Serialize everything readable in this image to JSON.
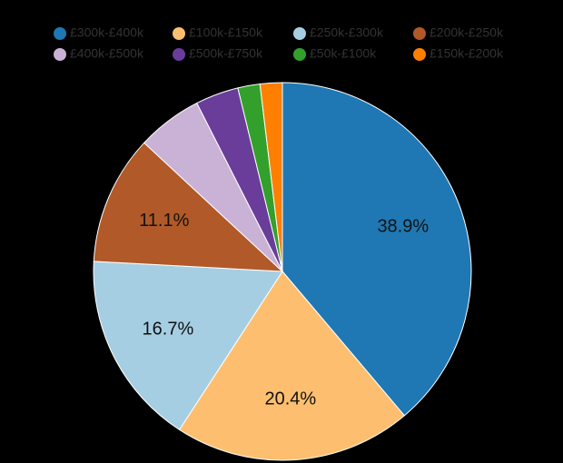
{
  "chart_data": {
    "type": "pie",
    "categories": [
      "£300k-£400k",
      "£100k-£150k",
      "£250k-£300k",
      "£200k-£250k",
      "£400k-£500k",
      "£500k-£750k",
      "£50k-£100k",
      "£150k-£200k"
    ],
    "values": [
      38.9,
      20.4,
      16.7,
      11.1,
      5.6,
      3.7,
      1.9,
      1.9
    ],
    "value_labels": [
      "38.9%",
      "20.4%",
      "16.7%",
      "11.1%",
      null,
      null,
      null,
      null
    ],
    "colors": [
      "#1f78b4",
      "#fdbf6f",
      "#a6cee3",
      "#b15928",
      "#cab2d6",
      "#6a3d9a",
      "#33a02c",
      "#ff7f00"
    ],
    "legend": "top"
  }
}
